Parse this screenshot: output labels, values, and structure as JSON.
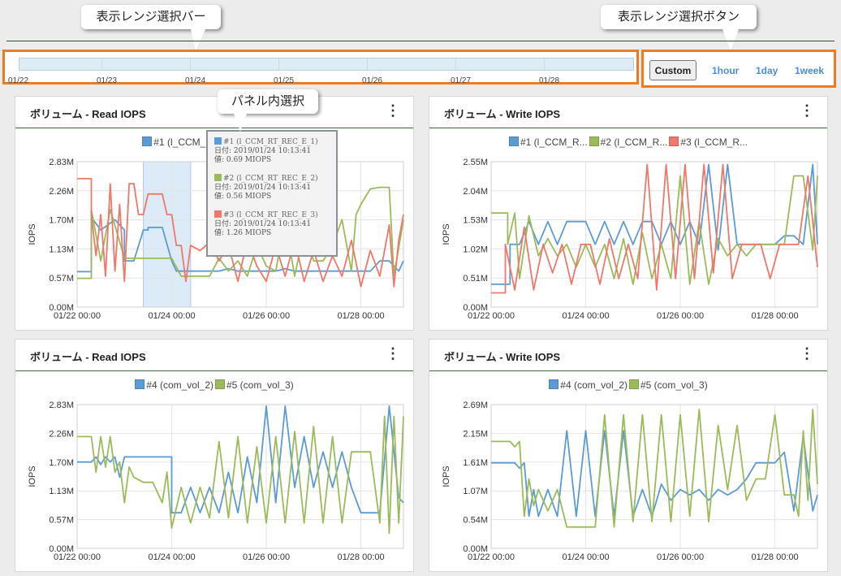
{
  "annotations": {
    "range_bar": "表示レンジ選択バー",
    "range_buttons": "表示レンジ選択ボタン",
    "panel_select": "パネル内選択"
  },
  "range_bar": {
    "dates": [
      "01/22",
      "01/23",
      "01/24",
      "01/25",
      "01/26",
      "01/27",
      "01/28"
    ]
  },
  "range_buttons": {
    "custom": "Custom",
    "hour": "1hour",
    "day": "1day",
    "week": "1week"
  },
  "colors": {
    "blue": "#5b9bd5",
    "green": "#9bbb59",
    "red": "#f0776a",
    "accent_orange": "#f07a1d",
    "link_blue": "#4a8ed6"
  },
  "panels": [
    {
      "title": "ボリューム - Read IOPS",
      "legend": [
        {
          "label": "#1 (l_CCM_R...",
          "color": "#5b9bd5"
        },
        {
          "label": "#2 (l_",
          "color": "#9bbb59"
        },
        {
          "label": "R...",
          "color": "#f0776a"
        }
      ]
    },
    {
      "title": "ボリューム - Write IOPS",
      "legend": [
        {
          "label": "#1 (l_CCM_R...",
          "color": "#5b9bd5"
        },
        {
          "label": "#2 (l_CCM_R...",
          "color": "#9bbb59"
        },
        {
          "label": "#3 (l_CCM_R...",
          "color": "#f0776a"
        }
      ]
    },
    {
      "title": "ボリューム - Read IOPS",
      "legend": [
        {
          "label": "#4 (com_vol_2)",
          "color": "#5b9bd5"
        },
        {
          "label": "#5 (com_vol_3)",
          "color": "#9bbb59"
        }
      ]
    },
    {
      "title": "ボリューム - Write IOPS",
      "legend": [
        {
          "label": "#4 (com_vol_2)",
          "color": "#5b9bd5"
        },
        {
          "label": "#5 (com_vol_3)",
          "color": "#9bbb59"
        }
      ]
    }
  ],
  "tooltip": {
    "entries": [
      {
        "name": "#1 (l_CCM_RT_REC_E_1)",
        "date": "日付: 2019/01/24 10:13:41",
        "value": "値: 0.69 MIOPS",
        "color": "#5b9bd5"
      },
      {
        "name": "#2 (l_CCM_RT_REC_E_2)",
        "date": "日付: 2019/01/24 10:13:41",
        "value": "値: 0.56 MIOPS",
        "color": "#9bbb59"
      },
      {
        "name": "#3 (l_CCM_RT_REC_E_3)",
        "date": "日付: 2019/01/24 10:13:41",
        "value": "値: 1.26 MIOPS",
        "color": "#f0776a"
      }
    ]
  },
  "chart_data": [
    {
      "type": "line",
      "title": "ボリューム - Read IOPS",
      "ylabel": "IOPS",
      "yticks": [
        "0.00M",
        "0.57M",
        "1.13M",
        "1.70M",
        "2.26M",
        "2.83M"
      ],
      "ylim": [
        0,
        2.83
      ],
      "xticks": [
        "01/22 00:00",
        "01/24 00:00",
        "01/26 00:00",
        "01/28 00:00"
      ],
      "xlim": [
        0,
        6.9
      ],
      "selection": [
        1.4,
        2.4
      ],
      "series": [
        {
          "name": "#1 (l_CCM_R...",
          "color": "#5b9bd5",
          "x": [
            0,
            0.3,
            0.3,
            0.5,
            0.8,
            1.0,
            1.0,
            1.2,
            1.4,
            1.5,
            1.5,
            1.8,
            2.0,
            2.1,
            2.2,
            2.4,
            2.6,
            2.8,
            3.0,
            3.2,
            3.4,
            3.6,
            3.8,
            4.0,
            4.2,
            4.4,
            4.6,
            4.8,
            5.0,
            5.2,
            5.4,
            5.6,
            5.8,
            6.0,
            6.2,
            6.4,
            6.6,
            6.8,
            6.9
          ],
          "values": [
            0.69,
            0.69,
            1.75,
            1.5,
            1.7,
            1.5,
            0.9,
            0.9,
            1.5,
            1.5,
            1.55,
            1.55,
            0.9,
            0.7,
            0.7,
            0.7,
            0.7,
            0.7,
            0.7,
            0.75,
            0.7,
            0.7,
            0.7,
            0.7,
            0.7,
            0.75,
            0.7,
            0.7,
            0.7,
            0.7,
            0.7,
            0.7,
            0.7,
            0.7,
            0.7,
            0.9,
            0.9,
            0.7,
            0.9
          ]
        },
        {
          "name": "#2 (l_",
          "color": "#9bbb59",
          "x": [
            0,
            0.3,
            0.3,
            0.5,
            0.7,
            1.0,
            1.0,
            1.3,
            1.5,
            1.8,
            2.0,
            2.2,
            2.4,
            2.6,
            2.8,
            3.0,
            3.2,
            3.4,
            3.6,
            3.8,
            4.0,
            4.2,
            4.4,
            4.6,
            4.8,
            5.0,
            5.2,
            5.4,
            5.6,
            5.8,
            5.9,
            6.0,
            6.2,
            6.4,
            6.5,
            6.6,
            6.7,
            6.9
          ],
          "values": [
            0.56,
            0.56,
            1.9,
            0.9,
            1.9,
            0.95,
            0.95,
            0.95,
            0.95,
            0.95,
            0.95,
            0.6,
            0.6,
            0.6,
            0.6,
            0.95,
            0.7,
            0.9,
            0.6,
            1.2,
            0.8,
            0.7,
            1.7,
            0.6,
            1.5,
            0.9,
            0.9,
            1.2,
            1.7,
            0.7,
            1.8,
            2.0,
            2.3,
            2.33,
            2.33,
            2.33,
            0.6,
            1.7
          ]
        },
        {
          "name": "R...",
          "color": "#f0776a",
          "x": [
            0,
            0.3,
            0.3,
            0.4,
            0.5,
            0.6,
            0.7,
            0.8,
            0.9,
            1.0,
            1.1,
            1.2,
            1.3,
            1.4,
            1.5,
            1.6,
            1.8,
            1.9,
            2.0,
            2.1,
            2.2,
            2.3,
            2.4,
            2.6,
            2.8,
            3.0,
            3.2,
            3.4,
            3.6,
            3.8,
            4.0,
            4.2,
            4.4,
            4.6,
            4.8,
            5.0,
            5.2,
            5.4,
            5.6,
            5.8,
            6.0,
            6.2,
            6.4,
            6.6,
            6.7,
            6.8,
            6.9
          ],
          "values": [
            2.5,
            2.5,
            1.8,
            1.0,
            1.8,
            0.6,
            2.4,
            0.7,
            2.0,
            0.5,
            2.4,
            2.4,
            1.8,
            1.8,
            2.2,
            2.2,
            2.2,
            1.8,
            1.8,
            1.2,
            1.2,
            0.5,
            1.2,
            1.1,
            1.26,
            0.9,
            1.2,
            0.5,
            1.3,
            0.8,
            0.5,
            1.2,
            0.6,
            1.3,
            0.5,
            1.1,
            0.5,
            1.0,
            0.6,
            1.3,
            0.4,
            1.1,
            0.6,
            1.6,
            0.4,
            1.3,
            1.8
          ]
        }
      ]
    },
    {
      "type": "line",
      "title": "ボリューム - Write IOPS",
      "ylabel": "IOPS",
      "yticks": [
        "0.00M",
        "0.51M",
        "1.02M",
        "1.53M",
        "2.04M",
        "2.55M"
      ],
      "ylim": [
        0,
        2.55
      ],
      "xticks": [
        "01/22 00:00",
        "01/24 00:00",
        "01/26 00:00",
        "01/28 00:00"
      ],
      "xlim": [
        0,
        6.9
      ],
      "series": [
        {
          "name": "#1 (l_CCM_R...",
          "color": "#5b9bd5",
          "x": [
            0,
            0.4,
            0.4,
            0.6,
            0.8,
            1.0,
            1.2,
            1.4,
            1.6,
            1.8,
            2.0,
            2.2,
            2.4,
            2.6,
            2.8,
            3.0,
            3.2,
            3.4,
            3.6,
            3.8,
            4.0,
            4.2,
            4.4,
            4.6,
            4.8,
            5.0,
            5.2,
            5.4,
            5.6,
            5.8,
            6.0,
            6.2,
            6.4,
            6.6,
            6.8,
            6.9
          ],
          "values": [
            0.4,
            0.4,
            1.1,
            1.1,
            1.5,
            1.1,
            1.5,
            1.1,
            1.5,
            1.5,
            1.5,
            1.1,
            1.5,
            1.1,
            1.5,
            1.1,
            1.5,
            1.5,
            1.1,
            1.5,
            1.1,
            1.5,
            1.1,
            2.5,
            1.0,
            2.5,
            1.1,
            1.1,
            1.1,
            1.1,
            1.1,
            1.25,
            1.25,
            1.1,
            2.5,
            1.1
          ]
        },
        {
          "name": "#2 (l_CCM_R...",
          "color": "#9bbb59",
          "x": [
            0,
            0.35,
            0.35,
            0.5,
            0.6,
            0.8,
            1.0,
            1.2,
            1.4,
            1.6,
            1.8,
            2.0,
            2.2,
            2.4,
            2.6,
            2.8,
            3.0,
            3.2,
            3.4,
            3.6,
            3.8,
            4.0,
            4.2,
            4.4,
            4.6,
            4.8,
            5.0,
            5.2,
            5.4,
            5.6,
            5.8,
            6.0,
            6.2,
            6.4,
            6.6,
            6.8,
            6.9
          ],
          "values": [
            1.65,
            1.65,
            1.1,
            1.65,
            0.5,
            1.6,
            0.9,
            1.2,
            0.9,
            1.1,
            0.7,
            1.1,
            0.7,
            1.1,
            0.5,
            1.2,
            0.4,
            1.3,
            0.5,
            1.1,
            0.5,
            2.3,
            0.4,
            1.5,
            0.4,
            1.2,
            0.9,
            1.1,
            0.9,
            1.1,
            1.1,
            1.1,
            1.1,
            2.3,
            2.3,
            1.0,
            2.3
          ]
        },
        {
          "name": "#3 (l_CCM_R...",
          "color": "#f0776a",
          "x": [
            0,
            0.3,
            0.3,
            0.5,
            0.7,
            0.9,
            1.1,
            1.3,
            1.5,
            1.7,
            1.9,
            2.1,
            2.3,
            2.5,
            2.7,
            2.9,
            3.1,
            3.3,
            3.5,
            3.7,
            3.9,
            4.1,
            4.3,
            4.5,
            4.7,
            4.9,
            5.1,
            5.3,
            5.5,
            5.7,
            5.9,
            6.1,
            6.3,
            6.5,
            6.7,
            6.9
          ],
          "values": [
            0.25,
            0.25,
            1.1,
            0.3,
            1.4,
            0.3,
            1.1,
            0.6,
            1.1,
            0.4,
            1.1,
            1.1,
            0.4,
            1.2,
            0.5,
            1.1,
            0.5,
            2.5,
            0.3,
            2.5,
            0.5,
            2.5,
            0.5,
            2.5,
            0.6,
            2.5,
            0.5,
            1.1,
            1.1,
            1.1,
            0.5,
            1.1,
            1.1,
            1.1,
            2.3,
            0.7
          ]
        }
      ]
    },
    {
      "type": "line",
      "title": "ボリューム - Read IOPS",
      "ylabel": "IOPS",
      "yticks": [
        "0.00M",
        "0.57M",
        "1.13M",
        "1.70M",
        "2.26M",
        "2.83M"
      ],
      "ylim": [
        0,
        2.83
      ],
      "xticks": [
        "01/22 00:00",
        "01/24 00:00",
        "01/26 00:00",
        "01/28 00:00"
      ],
      "xlim": [
        0,
        6.9
      ],
      "series": [
        {
          "name": "#4 (com_vol_2)",
          "color": "#5b9bd5",
          "x": [
            0,
            0.3,
            0.4,
            0.5,
            0.6,
            0.7,
            0.8,
            0.9,
            1.0,
            1.2,
            1.4,
            1.6,
            1.8,
            2.0,
            2.0,
            2.2,
            2.4,
            2.6,
            2.8,
            3.0,
            3.2,
            3.4,
            3.6,
            3.8,
            4.0,
            4.2,
            4.4,
            4.6,
            4.8,
            5.0,
            5.2,
            5.4,
            5.6,
            5.8,
            6.0,
            6.2,
            6.4,
            6.6,
            6.8,
            6.9
          ],
          "values": [
            1.7,
            1.7,
            1.8,
            1.65,
            1.8,
            1.7,
            1.8,
            1.4,
            1.8,
            1.8,
            1.8,
            1.8,
            1.8,
            1.8,
            0.7,
            0.7,
            1.2,
            0.7,
            1.2,
            0.7,
            1.5,
            0.7,
            1.8,
            0.9,
            2.8,
            0.9,
            2.8,
            1.2,
            2.2,
            1.2,
            1.9,
            1.2,
            1.9,
            1.2,
            0.7,
            0.7,
            0.7,
            2.8,
            1.0,
            0.9
          ]
        },
        {
          "name": "#5 (com_vol_3)",
          "color": "#9bbb59",
          "x": [
            0,
            0.3,
            0.4,
            0.5,
            0.6,
            0.7,
            0.8,
            0.9,
            1.0,
            1.1,
            1.2,
            1.4,
            1.6,
            1.8,
            1.9,
            2.0,
            2.2,
            2.4,
            2.6,
            2.8,
            3.0,
            3.2,
            3.4,
            3.6,
            3.8,
            4.0,
            4.2,
            4.4,
            4.6,
            4.8,
            5.0,
            5.2,
            5.4,
            5.6,
            5.8,
            6.0,
            6.2,
            6.4,
            6.5,
            6.6,
            6.7,
            6.8,
            6.9
          ],
          "values": [
            2.2,
            2.2,
            1.5,
            2.2,
            1.6,
            2.2,
            1.5,
            1.7,
            0.9,
            1.6,
            1.4,
            1.3,
            1.3,
            0.9,
            1.5,
            0.4,
            1.2,
            0.5,
            1.2,
            0.6,
            2.1,
            0.6,
            2.2,
            0.5,
            2.0,
            0.5,
            2.2,
            0.5,
            2.3,
            0.5,
            2.4,
            0.5,
            2.2,
            0.5,
            1.9,
            1.9,
            1.9,
            0.5,
            2.6,
            0.3,
            2.6,
            0.5,
            2.6
          ]
        }
      ]
    },
    {
      "type": "line",
      "title": "ボリューム - Write IOPS",
      "ylabel": "IOPS",
      "yticks": [
        "0.00M",
        "0.54M",
        "1.07M",
        "1.61M",
        "2.15M",
        "2.69M"
      ],
      "ylim": [
        0,
        2.69
      ],
      "xticks": [
        "01/22 00:00",
        "01/24 00:00",
        "01/26 00:00",
        "01/28 00:00"
      ],
      "xlim": [
        0,
        6.9
      ],
      "series": [
        {
          "name": "#4 (com_vol_2)",
          "color": "#5b9bd5",
          "x": [
            0,
            0.5,
            0.6,
            0.7,
            0.8,
            0.9,
            1.0,
            1.2,
            1.4,
            1.6,
            1.8,
            2.0,
            2.2,
            2.4,
            2.6,
            2.8,
            3.0,
            3.2,
            3.4,
            3.6,
            3.8,
            4.0,
            4.2,
            4.4,
            4.6,
            4.8,
            5.0,
            5.2,
            5.4,
            5.6,
            5.8,
            6.0,
            6.2,
            6.4,
            6.6,
            6.8,
            6.9
          ],
          "values": [
            1.6,
            1.6,
            1.5,
            1.6,
            0.6,
            1.1,
            0.6,
            1.1,
            0.6,
            2.2,
            0.6,
            2.2,
            0.6,
            2.2,
            0.6,
            2.2,
            0.6,
            1.1,
            0.6,
            1.2,
            0.9,
            1.1,
            1.0,
            1.1,
            0.9,
            1.1,
            1.0,
            1.1,
            1.3,
            1.6,
            1.6,
            1.6,
            1.8,
            0.7,
            2.1,
            0.7,
            1.0
          ]
        },
        {
          "name": "#5 (com_vol_3)",
          "color": "#9bbb59",
          "x": [
            0,
            0.4,
            0.5,
            0.6,
            0.7,
            0.8,
            0.9,
            1.0,
            1.2,
            1.4,
            1.6,
            1.8,
            2.0,
            2.2,
            2.4,
            2.6,
            2.8,
            3.0,
            3.2,
            3.4,
            3.6,
            3.8,
            4.0,
            4.2,
            4.4,
            4.6,
            4.8,
            5.0,
            5.2,
            5.4,
            5.6,
            5.8,
            6.0,
            6.2,
            6.4,
            6.5,
            6.6,
            6.7,
            6.8,
            6.9
          ],
          "values": [
            2.0,
            2.0,
            1.9,
            2.0,
            0.6,
            1.3,
            0.8,
            1.1,
            0.7,
            1.1,
            0.4,
            0.4,
            0.4,
            0.4,
            2.5,
            0.4,
            2.5,
            0.5,
            2.5,
            0.5,
            2.5,
            0.5,
            2.5,
            0.6,
            2.6,
            0.5,
            2.3,
            1.1,
            2.3,
            0.9,
            1.3,
            1.3,
            2.5,
            1.0,
            1.0,
            0.6,
            2.2,
            0.9,
            2.6,
            1.2
          ]
        }
      ]
    }
  ]
}
